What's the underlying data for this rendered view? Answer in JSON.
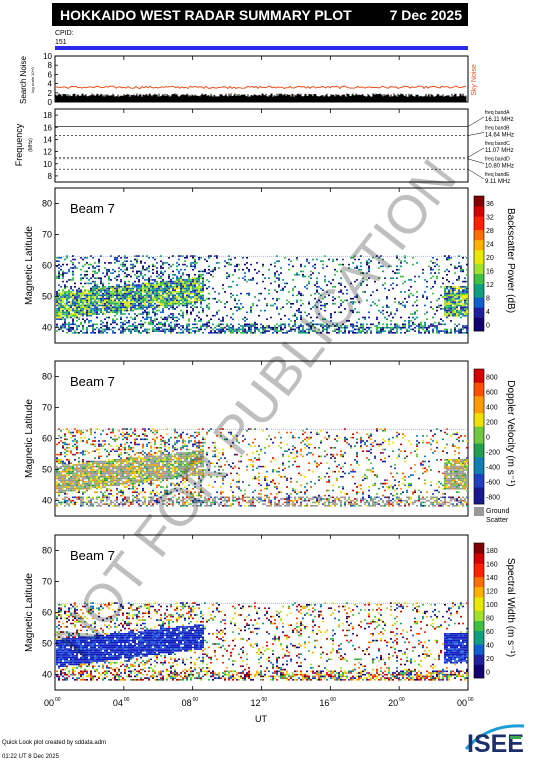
{
  "header": {
    "title": "HOKKAIDO WEST RADAR SUMMARY PLOT",
    "date": "7 Dec 2025"
  },
  "cpid": {
    "label": "CPID:",
    "value": "151"
  },
  "noise_panel": {
    "ylabel": "Search Noise",
    "ylabel_small": "log scale 10^0",
    "ticks": [
      "10",
      "8",
      "6",
      "4",
      "2",
      "0"
    ],
    "sky_noise_label": "Sky Noise",
    "colors": {
      "bars": "#000000",
      "sky": "#e8501e"
    }
  },
  "freq_panel": {
    "ylabel": "Frequency",
    "unit": "(MHz)",
    "ticks": [
      "18",
      "16",
      "14",
      "12",
      "10",
      "8"
    ],
    "bands": [
      {
        "label": "freq bandA",
        "value": "16.11 MHz",
        "mhz": 16.11
      },
      {
        "label": "freq bandB",
        "value": "14.64 MHz",
        "mhz": 14.64
      },
      {
        "label": "freq bandC",
        "value": "11.07 MHz",
        "mhz": 11.07
      },
      {
        "label": "freq bandD",
        "value": "10.80 MHz",
        "mhz": 10.8
      },
      {
        "label": "freq bandE",
        "value": "9.11 MHz",
        "mhz": 9.11
      }
    ]
  },
  "panels": [
    {
      "beam": "Beam  7",
      "ylabel": "Magnetic Latitude",
      "yticks": [
        "80",
        "70",
        "60",
        "50",
        "40"
      ],
      "cbar_label": "Backscatter Power (dB)",
      "cbar_ticks": [
        "36",
        "32",
        "28",
        "24",
        "20",
        "16",
        "12",
        "8",
        "4",
        "0"
      ]
    },
    {
      "beam": "Beam  7",
      "ylabel": "Magnetic Latitude",
      "yticks": [
        "80",
        "70",
        "60",
        "50",
        "40"
      ],
      "cbar_label": "Doppler Velocity (m s⁻¹)",
      "cbar_ticks": [
        "800",
        "600",
        "400",
        "200",
        "0",
        "-200",
        "-400",
        "-600",
        "-800"
      ],
      "ground_label": "Ground",
      "scatter_label": "Scatter"
    },
    {
      "beam": "Beam  7",
      "ylabel": "Magnetic Latitude",
      "yticks": [
        "80",
        "70",
        "60",
        "50",
        "40"
      ],
      "cbar_label": "Spectral Width (m s⁻¹)",
      "cbar_ticks": [
        "180",
        "160",
        "140",
        "120",
        "100",
        "80",
        "60",
        "40",
        "20",
        "0"
      ]
    }
  ],
  "xaxis": {
    "ticks": [
      "00",
      "04",
      "08",
      "12",
      "16",
      "20",
      "00"
    ],
    "tick_sup": "00",
    "label": "UT"
  },
  "watermark": "NOT FOR PUBLICATION",
  "footer": {
    "line1": "Quick Look plot created by sddata.adm",
    "line2": "01:22 UT  8 Dec 2025"
  },
  "logo": {
    "text": "ISEE"
  },
  "chart_data": {
    "type": "heatmap",
    "title": "HOKKAIDO WEST RADAR SUMMARY PLOT",
    "x_range_hours": [
      0,
      24
    ],
    "lat_range": [
      35,
      85
    ],
    "data_lat_range": [
      38,
      63
    ],
    "search_noise_ylim": [
      0,
      10
    ],
    "search_noise_level": 1.5,
    "sky_noise_level": 3.2,
    "freq_ylim": [
      7,
      19
    ],
    "echo_band": {
      "x_hours": [
        0,
        5,
        8.5
      ],
      "lat_low": [
        42,
        44,
        49
      ],
      "lat_high": [
        52,
        50,
        56
      ]
    },
    "late_echo_band": {
      "x_hours": [
        22.5,
        24
      ],
      "lat_range": [
        43,
        53
      ]
    }
  }
}
